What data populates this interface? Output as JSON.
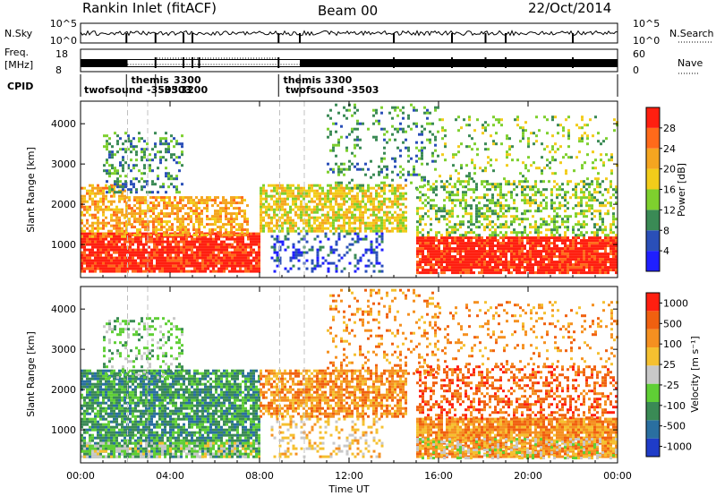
{
  "header": {
    "station": "Rankin Inlet (fitACF)",
    "beam": "Beam 00",
    "date": "22/Oct/2014"
  },
  "nsky_panel": {
    "left_label": "N.Sky",
    "right_label": "N.Search",
    "left_ticks": [
      "10^5",
      "10^0"
    ],
    "right_ticks": [
      "10^5",
      "10^0"
    ]
  },
  "freq_panel": {
    "left_label_1": "Freq.",
    "left_label_2": "[MHz]",
    "left_ticks": [
      "18",
      "8"
    ],
    "right_label": "Nave",
    "right_ticks": [
      "60",
      "0"
    ]
  },
  "cpid": {
    "label": "CPID",
    "modes": [
      {
        "text": "twofsound",
        "row": 2,
        "hour": 0.0
      },
      {
        "text": "-3503",
        "row": 2,
        "hour": 2.8
      },
      {
        "text": "themis",
        "row": 1,
        "hour": 2.1
      },
      {
        "text": "3300",
        "row": 1,
        "hour": 4.0
      },
      {
        "text": "-3503",
        "row": 2,
        "hour": 3.4
      },
      {
        "text": "3200",
        "row": 2,
        "hour": 4.3
      },
      {
        "text": "themis  3300",
        "row": 1,
        "hour": 8.9
      },
      {
        "text": "twofsound  -3503",
        "row": 2,
        "hour": 9.0
      }
    ],
    "transitions_h": [
      2.05,
      3.35,
      8.85,
      9.8
    ]
  },
  "chart_data": [
    {
      "type": "heatmap",
      "name": "power",
      "ylabel": "Slant Range [km]",
      "xlabel": "",
      "xlim": [
        0,
        24
      ],
      "ylim": [
        180,
        4560
      ],
      "yticks": [
        1000,
        2000,
        3000,
        4000
      ],
      "xticks": [
        "00:00",
        "04:00",
        "08:00",
        "12:00",
        "16:00",
        "20:00",
        "00:00"
      ],
      "colorbar": {
        "label": "Power [dB]",
        "tick_labels": [
          "4",
          "8",
          "12",
          "16",
          "20",
          "24",
          "28"
        ],
        "colors": [
          "#1f1fff",
          "#2a4fb8",
          "#3a8a55",
          "#7ed02e",
          "#f2cc1a",
          "#f5a520",
          "#ff6a1a",
          "#ff1f10"
        ]
      },
      "regions": [
        {
          "t0": 0.0,
          "t1": 8.0,
          "r0": 300,
          "r1": 1300,
          "level": 7,
          "density": 0.9
        },
        {
          "t0": 0.0,
          "t1": 2.0,
          "r0": 1200,
          "r1": 2500,
          "level": 5,
          "density": 0.6
        },
        {
          "t0": 2.0,
          "t1": 7.5,
          "r0": 1200,
          "r1": 2200,
          "level": 5,
          "density": 0.65
        },
        {
          "t0": 1.0,
          "t1": 4.5,
          "r0": 2300,
          "r1": 3800,
          "level": 2,
          "density": 0.35
        },
        {
          "t0": 8.0,
          "t1": 14.5,
          "r0": 1300,
          "r1": 2500,
          "level": 4,
          "density": 0.7
        },
        {
          "t0": 8.5,
          "t1": 13.5,
          "r0": 300,
          "r1": 1300,
          "level": 1,
          "density": 0.3
        },
        {
          "t0": 11.0,
          "t1": 16.0,
          "r0": 2400,
          "r1": 4500,
          "level": 2,
          "density": 0.2
        },
        {
          "t0": 15.0,
          "t1": 24.0,
          "r0": 300,
          "r1": 1200,
          "level": 7,
          "density": 0.92
        },
        {
          "t0": 15.0,
          "t1": 24.0,
          "r0": 1200,
          "r1": 2600,
          "level": 3,
          "density": 0.45
        },
        {
          "t0": 16.0,
          "t1": 24.0,
          "r0": 2600,
          "r1": 4200,
          "level": 3,
          "density": 0.15
        }
      ]
    },
    {
      "type": "heatmap",
      "name": "velocity",
      "ylabel": "Slant Range [km]",
      "xlabel": "Time UT",
      "xlim": [
        0,
        24
      ],
      "ylim": [
        180,
        4560
      ],
      "yticks": [
        1000,
        2000,
        3000,
        4000
      ],
      "xticks": [
        "00:00",
        "04:00",
        "08:00",
        "12:00",
        "16:00",
        "20:00",
        "00:00"
      ],
      "colorbar": {
        "label": "Velocity [m s⁻¹]",
        "tick_labels": [
          "1000",
          "500",
          "100",
          "25",
          "-25",
          "-100",
          "-500",
          "-1000"
        ],
        "colors": [
          "#1f3cc8",
          "#2a6fa0",
          "#3a8a55",
          "#5fcf35",
          "#c8c8c8",
          "#f5c030",
          "#f59020",
          "#f06010",
          "#ff1f10"
        ]
      },
      "regions": [
        {
          "t0": 0.0,
          "t1": 8.0,
          "r0": 300,
          "r1": 2500,
          "level": 2,
          "density": 0.82
        },
        {
          "t0": 0.0,
          "t1": 8.0,
          "r0": 300,
          "r1": 700,
          "level": 4,
          "density": 0.45
        },
        {
          "t0": 1.0,
          "t1": 4.5,
          "r0": 2300,
          "r1": 3800,
          "level": 3,
          "density": 0.3
        },
        {
          "t0": 8.0,
          "t1": 14.5,
          "r0": 1300,
          "r1": 2500,
          "level": 6,
          "density": 0.7
        },
        {
          "t0": 8.5,
          "t1": 13.5,
          "r0": 300,
          "r1": 1300,
          "level": 5,
          "density": 0.3
        },
        {
          "t0": 11.0,
          "t1": 16.0,
          "r0": 2400,
          "r1": 4500,
          "level": 6,
          "density": 0.2
        },
        {
          "t0": 15.0,
          "t1": 24.0,
          "r0": 300,
          "r1": 1300,
          "level": 6,
          "density": 0.88
        },
        {
          "t0": 15.0,
          "t1": 24.0,
          "r0": 300,
          "r1": 800,
          "level": 4,
          "density": 0.35
        },
        {
          "t0": 15.0,
          "t1": 24.0,
          "r0": 1300,
          "r1": 2600,
          "level": 7,
          "density": 0.45
        },
        {
          "t0": 16.0,
          "t1": 24.0,
          "r0": 2600,
          "r1": 4200,
          "level": 6,
          "density": 0.15
        }
      ]
    }
  ]
}
